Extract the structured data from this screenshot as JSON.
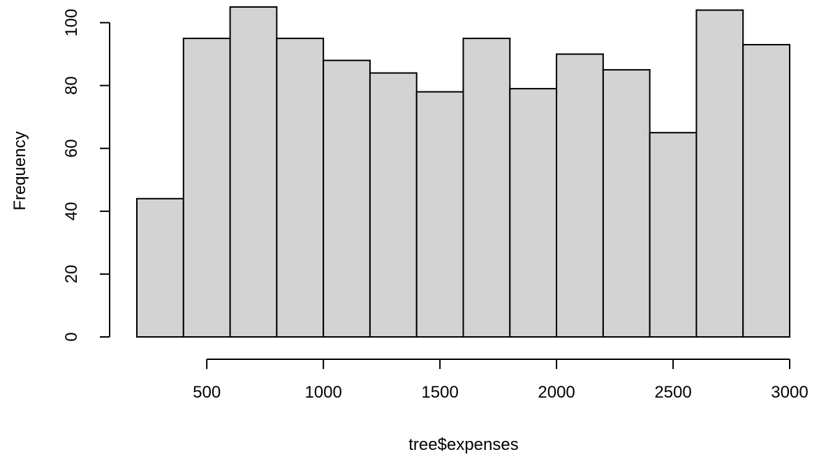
{
  "chart_data": {
    "type": "bar",
    "subtype": "histogram",
    "title": "",
    "xlabel": "tree$expenses",
    "ylabel": "Frequency",
    "bin_edges": [
      200,
      400,
      600,
      800,
      1000,
      1200,
      1400,
      1600,
      1800,
      2000,
      2200,
      2400,
      2600,
      2800,
      3000
    ],
    "values": [
      44,
      95,
      105,
      95,
      88,
      84,
      78,
      95,
      79,
      90,
      85,
      65,
      104,
      93
    ],
    "xlim": [
      200,
      3000
    ],
    "ylim": [
      0,
      105
    ],
    "x_ticks": [
      500,
      1000,
      1500,
      2000,
      2500,
      3000
    ],
    "y_ticks": [
      0,
      20,
      40,
      60,
      80,
      100
    ],
    "bar_color": "#d3d3d3",
    "bar_border_color": "#000000",
    "grid": false,
    "legend": "none"
  }
}
